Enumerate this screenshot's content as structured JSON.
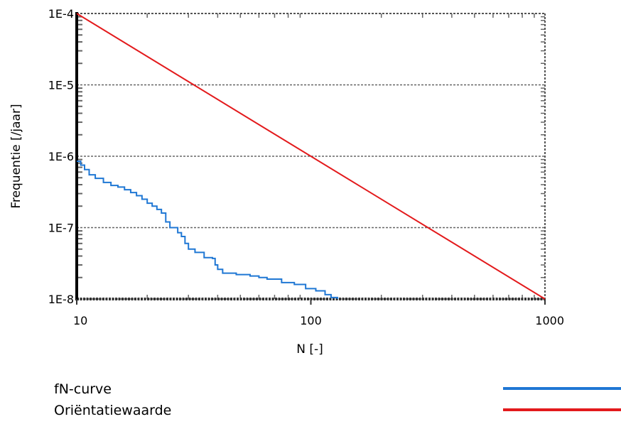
{
  "chart_data": {
    "type": "line",
    "xscale": "log",
    "yscale": "log",
    "xlim": [
      10,
      1000
    ],
    "ylim": [
      1e-08,
      0.0001
    ],
    "xlabel": "N [-]",
    "ylabel": "Frequentie [/jaar]",
    "x_ticks": [
      {
        "value": 10,
        "label": "10"
      },
      {
        "value": 100,
        "label": "100"
      },
      {
        "value": 1000,
        "label": "1000"
      }
    ],
    "y_ticks": [
      {
        "value": 0.0001,
        "label": "1E-4"
      },
      {
        "value": 1e-05,
        "label": "1E-5"
      },
      {
        "value": 1e-06,
        "label": "1E-6"
      },
      {
        "value": 1e-07,
        "label": "1E-7"
      },
      {
        "value": 1e-08,
        "label": "1E-8"
      }
    ],
    "grid": "horizontal dashed at decades",
    "legend_position": "bottom",
    "series": [
      {
        "name": "fN-curve",
        "color": "#1f77d4",
        "style": "step",
        "points": [
          [
            10,
            8.5e-07
          ],
          [
            10.4,
            7.5e-07
          ],
          [
            10.8,
            6.5e-07
          ],
          [
            11.3,
            5.5e-07
          ],
          [
            12,
            4.9e-07
          ],
          [
            13,
            4.3e-07
          ],
          [
            14,
            3.9e-07
          ],
          [
            15,
            3.7e-07
          ],
          [
            16,
            3.4e-07
          ],
          [
            17,
            3.1e-07
          ],
          [
            18,
            2.8e-07
          ],
          [
            19,
            2.5e-07
          ],
          [
            20,
            2.2e-07
          ],
          [
            21,
            2e-07
          ],
          [
            22,
            1.8e-07
          ],
          [
            23,
            1.6e-07
          ],
          [
            24,
            1.2e-07
          ],
          [
            25,
            1e-07
          ],
          [
            27,
            8.5e-08
          ],
          [
            28,
            7.5e-08
          ],
          [
            29,
            6e-08
          ],
          [
            30,
            5e-08
          ],
          [
            32,
            4.5e-08
          ],
          [
            35,
            3.8e-08
          ],
          [
            38,
            3.7e-08
          ],
          [
            39,
            3e-08
          ],
          [
            40,
            2.6e-08
          ],
          [
            42,
            2.3e-08
          ],
          [
            48,
            2.2e-08
          ],
          [
            55,
            2.1e-08
          ],
          [
            60,
            2e-08
          ],
          [
            65,
            1.9e-08
          ],
          [
            75,
            1.7e-08
          ],
          [
            85,
            1.6e-08
          ],
          [
            95,
            1.4e-08
          ],
          [
            105,
            1.3e-08
          ],
          [
            115,
            1.15e-08
          ],
          [
            122,
            1.05e-08
          ],
          [
            130,
            1e-08
          ]
        ]
      },
      {
        "name": "Oriëntatiewaarde",
        "color": "#e31a1c",
        "style": "line",
        "points": [
          [
            10,
            0.0001
          ],
          [
            1000,
            1e-08
          ]
        ]
      }
    ]
  },
  "legend": {
    "items": [
      {
        "label": "fN-curve",
        "color": "#1f77d4"
      },
      {
        "label": "Oriëntatiewaarde",
        "color": "#e31a1c"
      }
    ]
  }
}
